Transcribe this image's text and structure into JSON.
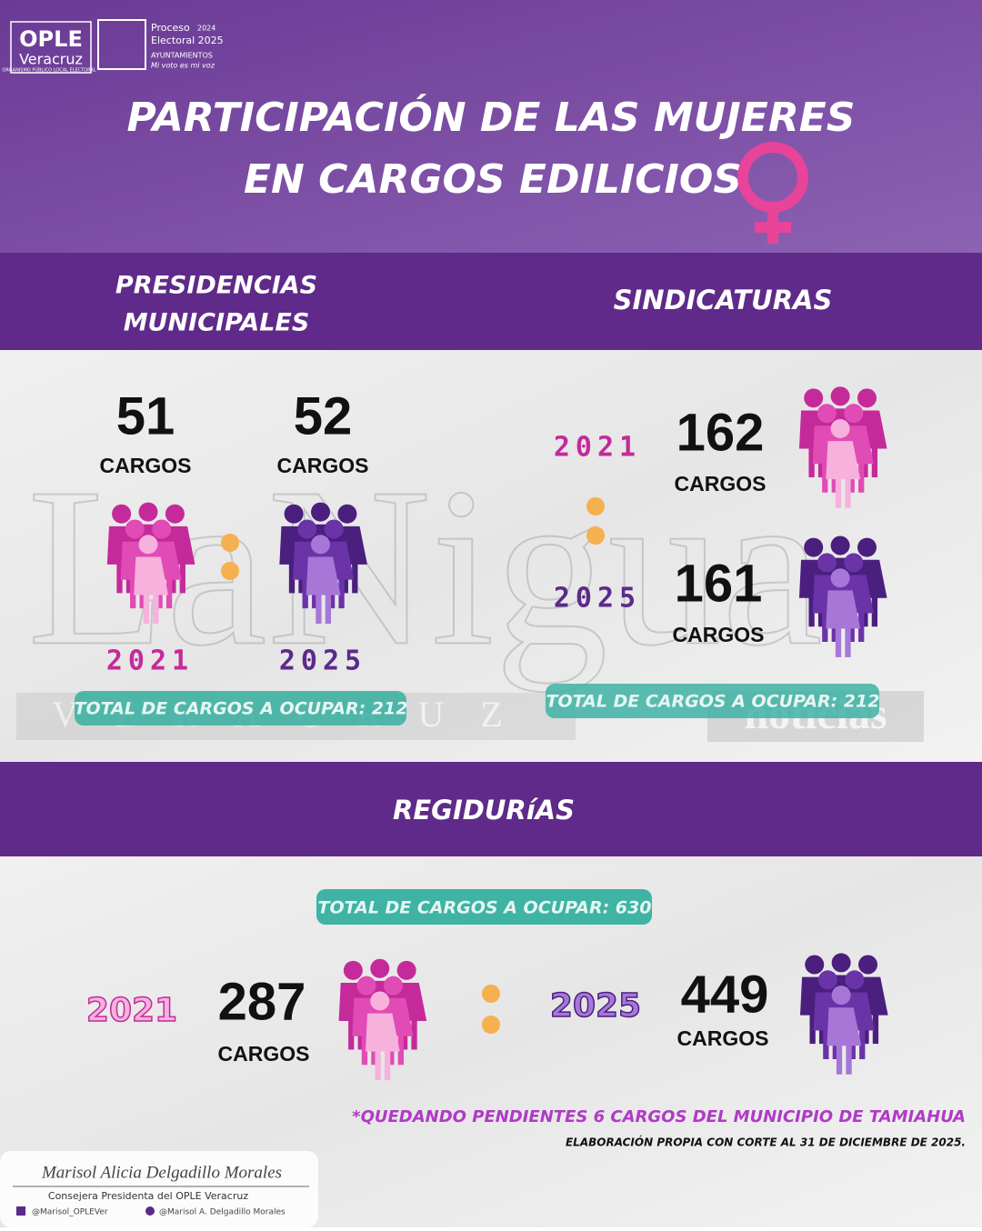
{
  "header": {
    "logo_name": "OPLE",
    "logo_sub": "Veracruz",
    "logo_tagline": "ORGANISMO PÚBLICO LOCAL ELECTORAL",
    "process": "Proceso",
    "process_years": "2024",
    "electoral": "Electoral 2025",
    "ayuntamientos": "AYUNTAMIENTOS",
    "slogan": "Mi voto es mi voz",
    "title_line1": "PARTICIPACIÓN DE LAS MUJERES",
    "title_line2": "EN CARGOS EDILICIOS"
  },
  "presidencias": {
    "title_line1": "PRESIDENCIAS",
    "title_line2": "MUNICIPALES",
    "entries": [
      {
        "value": 51,
        "unit": "CARGOS",
        "year": "2021"
      },
      {
        "value": 52,
        "unit": "CARGOS",
        "year": "2025"
      }
    ],
    "total": "TOTAL DE CARGOS A OCUPAR: 212"
  },
  "sindicaturas": {
    "title": "SINDICATURAS",
    "entries": [
      {
        "year": "2021",
        "value": 162,
        "unit": "CARGOS"
      },
      {
        "year": "2025",
        "value": 161,
        "unit": "CARGOS"
      }
    ],
    "total": "TOTAL DE CARGOS A OCUPAR: 212"
  },
  "regidurias": {
    "title": "REGIDURíAS",
    "total": "TOTAL DE CARGOS A OCUPAR: 630",
    "entries": [
      {
        "year": "2021",
        "value": 287,
        "unit": "CARGOS"
      },
      {
        "year": "2025",
        "value": 449,
        "unit": "CARGOS"
      }
    ]
  },
  "watermark": {
    "name": "LaNigua",
    "place": "VERACRUZ",
    "section": "noticias"
  },
  "notes": {
    "pending": "*QUEDANDO PENDIENTES 6 CARGOS DEL MUNICIPIO DE TAMIAHUA",
    "source": "ELABORACIÓN PROPIA CON CORTE AL 31 DE DICIEMBRE DE 2025."
  },
  "footer": {
    "signature": "Marisol Alicia Delgadillo Morales",
    "role": "Consejera Presidenta del OPLE Veracruz",
    "facebook": "@Marisol_OPLEVer",
    "x": "@Marisol A. Delgadillo Morales"
  }
}
